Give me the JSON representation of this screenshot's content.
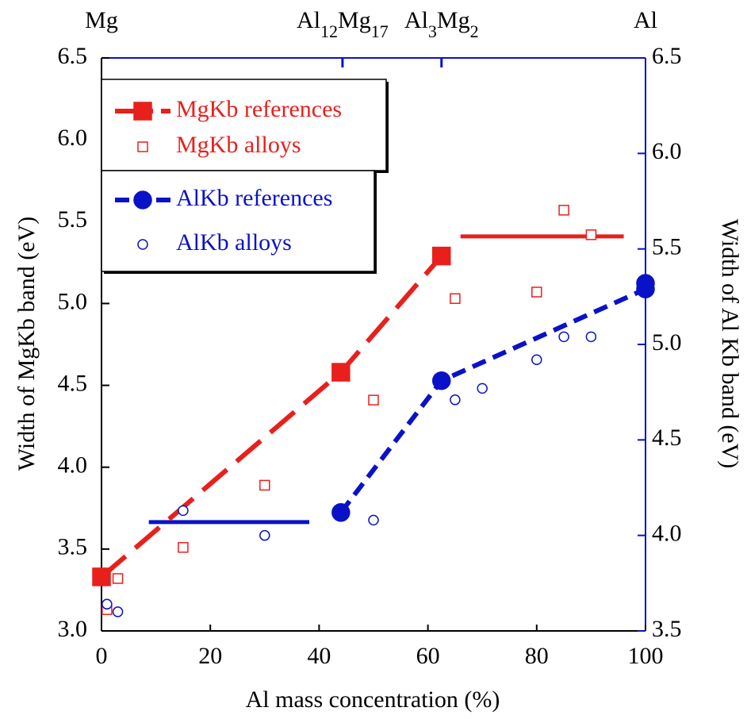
{
  "chart_data": {
    "type": "scatter",
    "xlabel": "Al mass concentration (%)",
    "ylabel": "Width of MgKb band (eV)",
    "y2label": "Width of Al Kb band (eV)",
    "xlim": [
      0,
      100
    ],
    "xticks": [
      0,
      20,
      40,
      60,
      80,
      100
    ],
    "ylim": [
      3,
      6.5
    ],
    "yticks": [
      {
        "value": 3,
        "label": "3.0"
      },
      {
        "value": 3.5,
        "label": "3.5"
      },
      {
        "value": 4,
        "label": "4.0"
      },
      {
        "value": 4.5,
        "label": "4.5"
      },
      {
        "value": 5,
        "label": "5.0"
      },
      {
        "value": 5.5,
        "label": "5.5"
      },
      {
        "value": 6,
        "label": "6.0"
      },
      {
        "value": 6.5,
        "label": "6.5"
      }
    ],
    "y2lim": [
      3.5,
      6.5
    ],
    "y2ticks": [
      {
        "value": 3.5,
        "label": "3.5"
      },
      {
        "value": 4,
        "label": "4.0"
      },
      {
        "value": 4.5,
        "label": "4.5"
      },
      {
        "value": 5,
        "label": "5.0"
      },
      {
        "value": 5.5,
        "label": "5.5"
      },
      {
        "value": 6,
        "label": "6.0"
      },
      {
        "value": 6.5,
        "label": "6.5"
      }
    ],
    "top_labels": [
      {
        "value": 0,
        "parts": [
          {
            "text": "Mg"
          }
        ]
      },
      {
        "value": 44.3,
        "parts": [
          {
            "text": "Al"
          },
          {
            "text": "12",
            "sub": true
          },
          {
            "text": "Mg"
          },
          {
            "text": "17",
            "sub": true
          }
        ]
      },
      {
        "value": 62.5,
        "parts": [
          {
            "text": "Al"
          },
          {
            "text": "3",
            "sub": true
          },
          {
            "text": "Mg"
          },
          {
            "text": "2",
            "sub": true
          }
        ]
      },
      {
        "value": 100,
        "parts": [
          {
            "text": "Al"
          }
        ]
      }
    ],
    "series": [
      {
        "name": "MgKb references",
        "color": "#e8201c",
        "marker": "square",
        "filled": true,
        "line": "dashed",
        "axis": "y",
        "x": [
          0,
          44,
          62.5
        ],
        "values": [
          3.33,
          4.58,
          5.29
        ]
      },
      {
        "name": "MgKb alloys",
        "color": "#e8201c",
        "marker": "square",
        "filled": false,
        "line": null,
        "axis": "y",
        "x": [
          1,
          3,
          15,
          30,
          50,
          65,
          80,
          85,
          90
        ],
        "values": [
          3.13,
          3.32,
          3.51,
          3.89,
          4.41,
          5.03,
          5.07,
          5.57,
          5.42
        ]
      },
      {
        "name": "AlKb references",
        "color": "#0a12c8",
        "marker": "circle",
        "filled": true,
        "line": "dashed",
        "axis": "y2",
        "x": [
          44,
          62.5,
          100,
          100
        ],
        "values": [
          4.12,
          4.81,
          5.29,
          5.32
        ]
      },
      {
        "name": "AlKb alloys",
        "color": "#0a12c8",
        "marker": "circle",
        "filled": false,
        "line": null,
        "axis": "y2",
        "x": [
          1,
          3,
          15,
          30,
          50,
          65,
          70,
          80,
          85,
          90
        ],
        "values": [
          3.64,
          3.6,
          4.13,
          4.0,
          4.08,
          4.71,
          4.77,
          4.92,
          5.04,
          5.04
        ]
      }
    ],
    "hlines": [
      {
        "color": "#e8201c",
        "axis": "y",
        "value": 5.41,
        "xrange": [
          66,
          96
        ]
      },
      {
        "color": "#0a12c8",
        "axis": "y2",
        "value": 4.07,
        "xrange": [
          8.7,
          38.2
        ]
      }
    ]
  }
}
